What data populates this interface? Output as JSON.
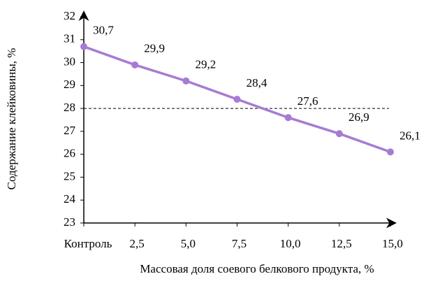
{
  "chart_data": {
    "type": "line",
    "y_label": "Содержание клейковины, %",
    "x_label": "Массовая доля соевого белкового продукта, %",
    "categories": [
      "Контроль",
      "2,5",
      "5,0",
      "7,5",
      "10,0",
      "12,5",
      "15,0"
    ],
    "series": [
      {
        "color": "#a77bd4",
        "values": [
          30.7,
          29.9,
          29.2,
          28.4,
          27.6,
          26.9,
          26.1
        ],
        "value_labels": [
          "30,7",
          "29,9",
          "29,2",
          "28,4",
          "27,6",
          "26,9",
          "26,1"
        ]
      }
    ],
    "ylim": [
      23,
      32
    ],
    "yticks": [
      23,
      24,
      25,
      26,
      27,
      28,
      29,
      30,
      31,
      32
    ],
    "reference_line": 28
  }
}
